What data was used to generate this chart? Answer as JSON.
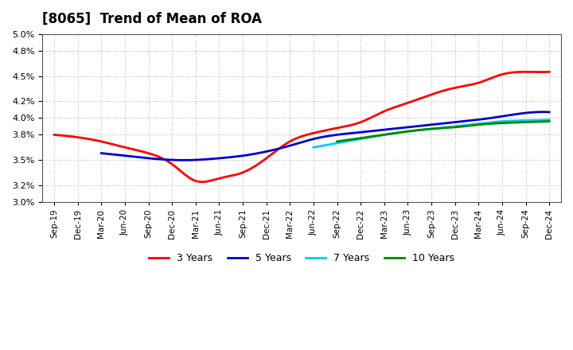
{
  "title": "[8065]  Trend of Mean of ROA",
  "ylabel": "",
  "ylim": [
    0.03,
    0.05
  ],
  "yticks": [
    0.03,
    0.032,
    0.035,
    0.038,
    0.04,
    0.042,
    0.045,
    0.048,
    0.05
  ],
  "background_color": "#ffffff",
  "grid_color": "#aaaaaa",
  "x_labels": [
    "Sep-19",
    "Dec-19",
    "Mar-20",
    "Jun-20",
    "Sep-20",
    "Dec-20",
    "Mar-21",
    "Jun-21",
    "Sep-21",
    "Dec-21",
    "Mar-22",
    "Jun-22",
    "Sep-22",
    "Dec-22",
    "Mar-23",
    "Jun-23",
    "Sep-23",
    "Dec-23",
    "Mar-24",
    "Jun-24",
    "Sep-24",
    "Dec-24"
  ],
  "series": {
    "3 Years": {
      "color": "#ff0000",
      "values": [
        0.038,
        0.0377,
        0.0372,
        0.0365,
        0.0358,
        0.0348,
        0.0325,
        0.0328,
        0.034,
        0.036,
        0.0385,
        0.039,
        0.0392,
        0.04,
        0.0415,
        0.0425,
        0.0435,
        0.044,
        0.0445,
        0.0452,
        0.0455,
        0.0455
      ]
    },
    "5 Years": {
      "color": "#0000cc",
      "values": [
        null,
        null,
        null,
        null,
        null,
        null,
        null,
        null,
        null,
        null,
        null,
        null,
        null,
        null,
        null,
        null,
        null,
        null,
        null,
        null,
        null,
        null
      ]
    },
    "7 Years": {
      "color": "#00ccff",
      "values": [
        null,
        null,
        null,
        null,
        null,
        null,
        null,
        null,
        null,
        null,
        null,
        null,
        null,
        null,
        null,
        null,
        null,
        null,
        null,
        null,
        null,
        null
      ]
    },
    "10 Years": {
      "color": "#008800",
      "values": [
        null,
        null,
        null,
        null,
        null,
        null,
        null,
        null,
        null,
        null,
        null,
        null,
        null,
        null,
        null,
        null,
        null,
        null,
        null,
        null,
        null,
        null
      ]
    }
  },
  "series_5yr": [
    null,
    null,
    null,
    null,
    null,
    null,
    null,
    null,
    null,
    null,
    null,
    null,
    null,
    0.0365,
    0.0368,
    0.0372,
    0.0378,
    0.0383,
    0.039,
    0.0398,
    0.0405,
    0.0407
  ],
  "series_7yr": [
    null,
    null,
    null,
    null,
    null,
    null,
    null,
    null,
    null,
    null,
    null,
    0.0365,
    0.037,
    0.0375,
    0.038,
    0.0385,
    0.039,
    0.0393,
    0.0395,
    0.0397,
    0.0398,
    0.0398
  ],
  "series_10yr": [
    null,
    null,
    null,
    null,
    null,
    null,
    null,
    null,
    null,
    null,
    null,
    null,
    null,
    null,
    null,
    null,
    null,
    null,
    null,
    null,
    null,
    null
  ],
  "legend_labels": [
    "3 Years",
    "5 Years",
    "7 Years",
    "10 Years"
  ],
  "legend_colors": [
    "#ff0000",
    "#0000cc",
    "#00ccff",
    "#008800"
  ]
}
